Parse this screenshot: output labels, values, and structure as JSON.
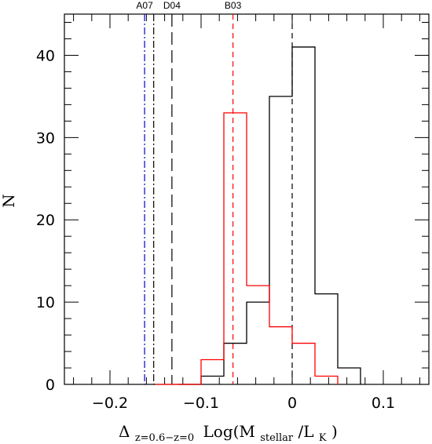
{
  "chart_data": {
    "type": "histogram",
    "xlim": [
      -0.25,
      0.15
    ],
    "ylim": [
      0,
      45
    ],
    "xticks": [
      -0.2,
      -0.1,
      0,
      0.1
    ],
    "xtick_labels": [
      "−0.2",
      "−0.1",
      "0",
      "0.1"
    ],
    "yticks": [
      0,
      10,
      20,
      30,
      40
    ],
    "ytick_labels": [
      "0",
      "10",
      "20",
      "30",
      "40"
    ],
    "xlabel": {
      "delta": "Δ",
      "delta_sub": "z=0.6−z=0",
      "log_prefix": "Log(M",
      "m_sub": "stellar",
      "slash_l": "/L",
      "l_sub": "K",
      "close": ")"
    },
    "ylabel": "N",
    "series": [
      {
        "color": "#000000",
        "bin_edges": [
          -0.125,
          -0.1,
          -0.075,
          -0.05,
          -0.025,
          0,
          0.025,
          0.05,
          0.075
        ],
        "counts": [
          0,
          1,
          5,
          10,
          35,
          41,
          11,
          2
        ]
      },
      {
        "color": "#ff0000",
        "bin_edges": [
          -0.15,
          -0.125,
          -0.1,
          -0.075,
          -0.05,
          -0.025,
          0,
          0.025,
          0.05
        ],
        "counts": [
          0,
          0,
          3,
          33,
          12,
          7,
          5,
          1
        ]
      }
    ],
    "reference_lines": [
      {
        "label": "A07",
        "x": -0.162,
        "color": "#0000cc",
        "style": "dashdot"
      },
      {
        "label": "",
        "x": -0.152,
        "color": "#000000",
        "style": "dashdot"
      },
      {
        "label": "D04",
        "x": -0.132,
        "color": "#000000",
        "style": "longdash"
      },
      {
        "label": "B03",
        "x": -0.065,
        "color": "#ff0000",
        "style": "dash"
      },
      {
        "label": "",
        "x": 0,
        "color": "#000000",
        "style": "dash"
      }
    ]
  }
}
